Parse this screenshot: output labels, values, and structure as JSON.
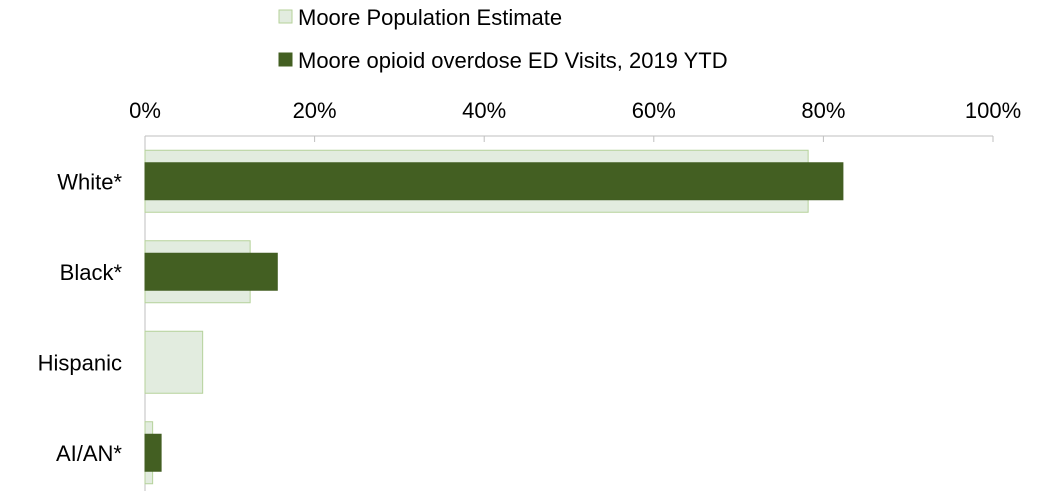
{
  "chart_data": {
    "type": "bar",
    "orientation": "horizontal",
    "categories": [
      "White*",
      "Black*",
      "Hispanic",
      "AI/AN*"
    ],
    "series": [
      {
        "name": "Moore Population Estimate",
        "values": [
          78.2,
          12.4,
          6.8,
          0.9
        ],
        "fill": "#e2ecdf",
        "stroke": "#b5d29a"
      },
      {
        "name": "Moore opioid overdose ED Visits, 2019 YTD",
        "values": [
          82.3,
          15.6,
          0,
          1.9
        ],
        "fill": "#435f22",
        "stroke": "#435f22"
      }
    ],
    "xlim": [
      0,
      100
    ],
    "xticks": [
      "0%",
      "20%",
      "40%",
      "60%",
      "80%",
      "100%"
    ],
    "xlabel": "",
    "ylabel": "",
    "title": "",
    "legend_position": "top",
    "grid": false
  }
}
